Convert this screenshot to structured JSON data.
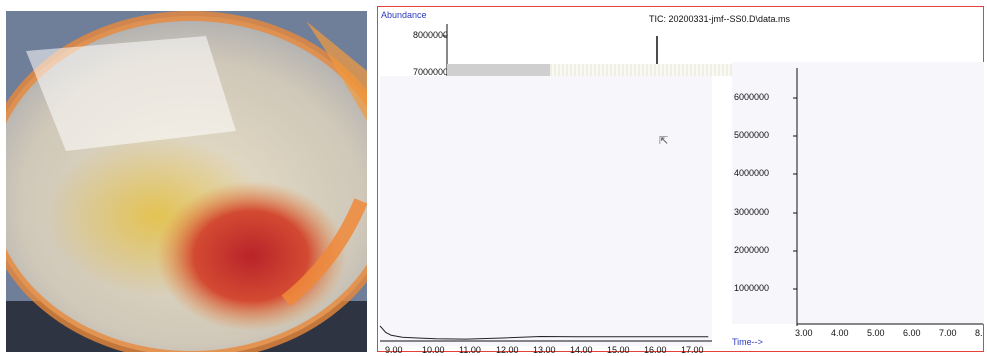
{
  "photo": {
    "alt_subject": "flask-with-orange-residue"
  },
  "tic": {
    "abundance_label": "Abundance",
    "title": "TIC: 20200331-jmf--SS0.D\\data.ms",
    "time_label": "Time-->",
    "top_y_labels": [
      "8000000",
      "7000000"
    ],
    "right_y_labels": [
      "6000000",
      "5000000",
      "4000000",
      "3000000",
      "2000000",
      "1000000"
    ],
    "left_x_labels": [
      "9.00",
      "10.00",
      "11.00",
      "12.00",
      "13.00",
      "14.00",
      "15.00",
      "16.00",
      "17.00"
    ],
    "right_x_labels": [
      "3.00",
      "4.00",
      "5.00",
      "6.00",
      "7.00",
      "8."
    ],
    "colors": {
      "frame": "#e3423a",
      "axis_label_blue": "#2d3bbf",
      "trace": "#222222"
    }
  },
  "chart_data": {
    "type": "line",
    "title": "TIC: 20200331-jmf--SS0.D\\data.ms",
    "xlabel": "Time-->",
    "ylabel": "Abundance",
    "series": [
      {
        "x": [
          8.7,
          8.85,
          9.0,
          9.3,
          9.7,
          10.2,
          11.0,
          12.0,
          13.0,
          14.0,
          15.0,
          16.0,
          17.0,
          17.5
        ],
        "values": [
          400000,
          230000,
          150000,
          100000,
          80000,
          60000,
          50000,
          80000,
          120000,
          110000,
          110000,
          110000,
          110000,
          110000
        ]
      }
    ],
    "xlim": [
      8.7,
      17.6
    ],
    "ylim": [
      0,
      7000000
    ],
    "grid": false
  }
}
